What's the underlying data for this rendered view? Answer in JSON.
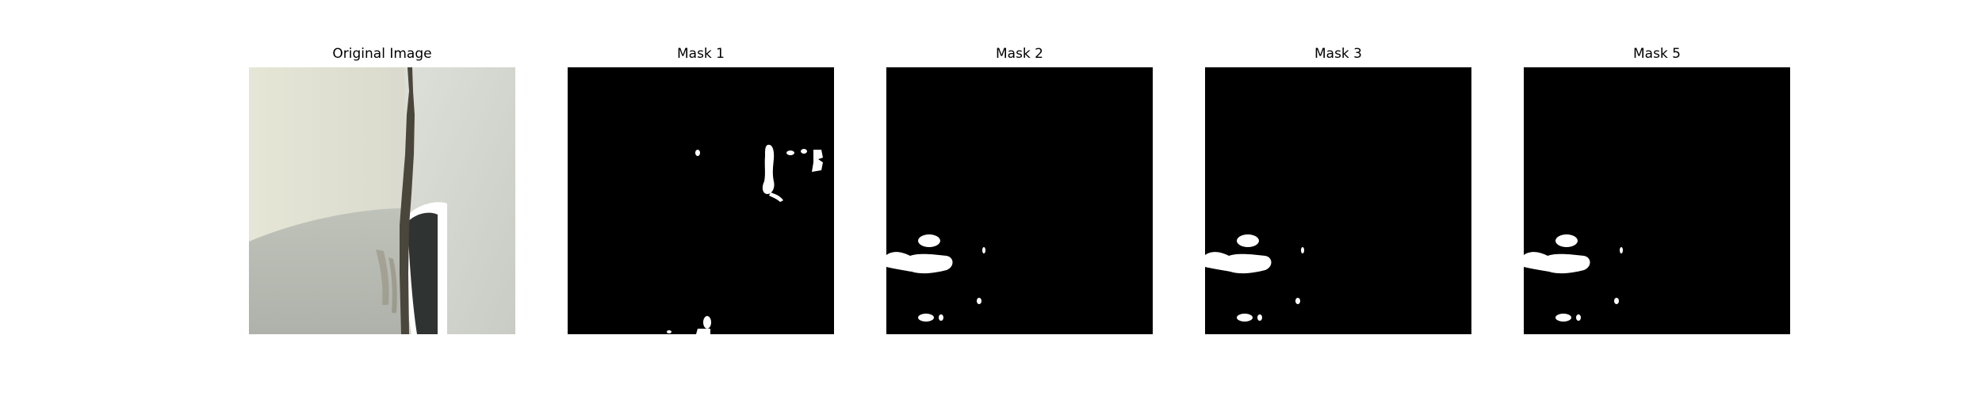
{
  "figure": {
    "panels": [
      {
        "title": "Original Image",
        "kind": "photo"
      },
      {
        "title": "Mask 1",
        "kind": "mask"
      },
      {
        "title": "Mask 2",
        "kind": "mask"
      },
      {
        "title": "Mask 3",
        "kind": "mask"
      },
      {
        "title": "Mask 5",
        "kind": "mask"
      }
    ]
  },
  "colors": {
    "mask_background": "#000000",
    "mask_foreground": "#ffffff",
    "photo_upper_panel": "#dcdccf",
    "photo_lower_panel": "#b9bdb4",
    "photo_seam": "#4a463c",
    "photo_trim": "#ffffff"
  }
}
